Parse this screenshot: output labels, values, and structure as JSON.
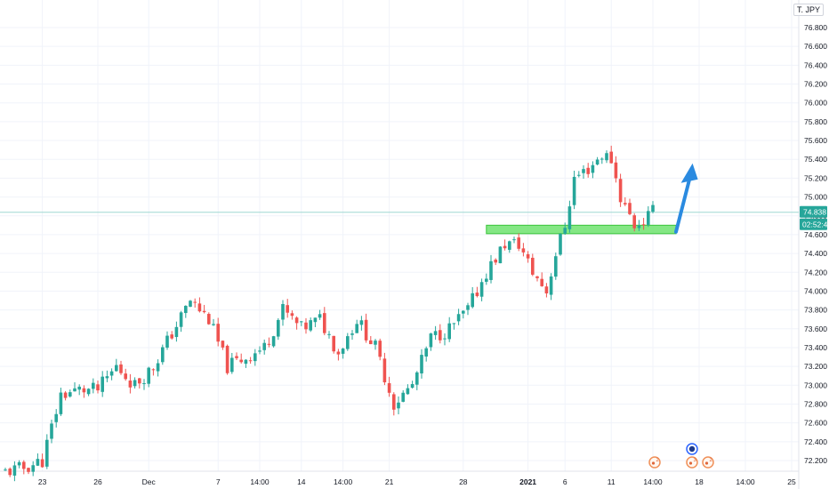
{
  "pair_label": "T. JPY",
  "colors": {
    "up": "#26a69a",
    "down": "#ef5350",
    "grid": "#f0f3fa",
    "axis_text": "#131722",
    "support_zone": "#6fe36f",
    "arrow": "#2a8ae0",
    "last_price_line": "#9fd8d2",
    "last_price_tag": "#26a69a"
  },
  "last_price": {
    "price_label": "74.838",
    "countdown_label": "02:52:40"
  },
  "event_markers": [
    {
      "icon": "event-icon",
      "count": "2"
    },
    {
      "icon": "flag-icon",
      "count": ""
    },
    {
      "icon": "event-icon",
      "count": "3"
    },
    {
      "icon": "event-icon",
      "count": "2"
    }
  ],
  "chart_data": {
    "type": "candlestick",
    "title": "",
    "xlabel": "",
    "ylabel": "",
    "ylim": [
      72.0,
      77.0
    ],
    "y_ticks": [
      "72.200",
      "72.400",
      "72.600",
      "72.800",
      "73.000",
      "73.200",
      "73.400",
      "73.600",
      "73.800",
      "74.000",
      "74.200",
      "74.400",
      "74.600",
      "74.800",
      "75.000",
      "75.200",
      "75.400",
      "75.600",
      "75.800",
      "76.000",
      "76.200",
      "76.400",
      "76.600",
      "76.800"
    ],
    "y_tick_values": [
      72.2,
      72.4,
      72.6,
      72.8,
      73.0,
      73.2,
      73.4,
      73.6,
      73.8,
      74.0,
      74.2,
      74.4,
      74.6,
      74.8,
      75.0,
      75.2,
      75.4,
      75.6,
      75.8,
      76.0,
      76.2,
      76.4,
      76.6,
      76.8
    ],
    "x_ticks": [
      "23",
      "26",
      "Dec",
      "7",
      "14:00",
      "14",
      "14:00",
      "21",
      "28",
      "2021",
      "6",
      "11",
      "14:00",
      "18",
      "14:00",
      "25"
    ],
    "x_tick_bold": [
      false,
      false,
      false,
      false,
      false,
      false,
      false,
      false,
      false,
      true,
      false,
      false,
      false,
      false,
      false,
      false
    ],
    "x_tick_bar_index": [
      8,
      20,
      31,
      46,
      55,
      64,
      73,
      83,
      99,
      113,
      121,
      131,
      140,
      150,
      160,
      170
    ],
    "total_bars": 178,
    "close_path": [
      [
        0,
        72.08
      ],
      [
        4,
        72.12
      ],
      [
        8,
        72.2
      ],
      [
        12,
        72.9
      ],
      [
        16,
        72.95
      ],
      [
        20,
        72.95
      ],
      [
        24,
        73.2
      ],
      [
        28,
        73.0
      ],
      [
        32,
        73.2
      ],
      [
        36,
        73.55
      ],
      [
        40,
        73.9
      ],
      [
        44,
        73.7
      ],
      [
        48,
        73.2
      ],
      [
        52,
        73.3
      ],
      [
        56,
        73.4
      ],
      [
        60,
        73.8
      ],
      [
        64,
        73.6
      ],
      [
        68,
        73.7
      ],
      [
        72,
        73.35
      ],
      [
        76,
        73.7
      ],
      [
        80,
        73.4
      ],
      [
        84,
        72.8
      ],
      [
        88,
        73.0
      ],
      [
        92,
        73.5
      ],
      [
        96,
        73.6
      ],
      [
        100,
        73.8
      ],
      [
        104,
        74.2
      ],
      [
        108,
        74.5
      ],
      [
        111,
        74.5
      ],
      [
        114,
        74.2
      ],
      [
        117,
        74.0
      ],
      [
        119,
        74.4
      ],
      [
        121,
        74.7
      ],
      [
        123,
        75.2
      ],
      [
        126,
        75.3
      ],
      [
        129,
        75.45
      ],
      [
        131,
        75.4
      ],
      [
        133,
        75.0
      ],
      [
        136,
        74.7
      ],
      [
        138,
        74.75
      ],
      [
        140,
        74.84
      ]
    ],
    "support_zone": {
      "low": 74.61,
      "high": 74.7,
      "from_bar": 104,
      "to_bar": 145
    },
    "projection_arrow": {
      "from": [
        145,
        74.63
      ],
      "to": [
        148,
        75.3
      ]
    }
  }
}
